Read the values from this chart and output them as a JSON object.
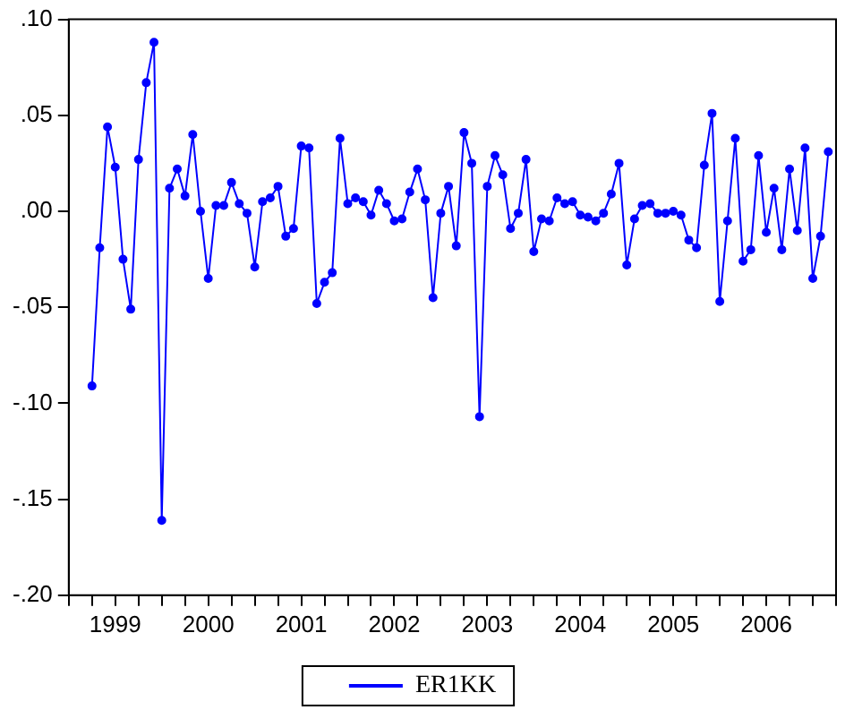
{
  "chart_data": {
    "type": "line",
    "marker": "circle",
    "legend": "bottom",
    "grid": false,
    "xlim": [
      "1999-01",
      "2007-04"
    ],
    "xticks": [
      {
        "value": "1999-01",
        "label": null
      },
      {
        "value": "1999-04",
        "label": null
      },
      {
        "value": "1999-07",
        "label": "1999"
      },
      {
        "value": "1999-10",
        "label": null
      },
      {
        "value": "2000-01",
        "label": null
      },
      {
        "value": "2000-04",
        "label": null
      },
      {
        "value": "2000-07",
        "label": "2000"
      },
      {
        "value": "2000-10",
        "label": null
      },
      {
        "value": "2001-01",
        "label": null
      },
      {
        "value": "2001-04",
        "label": null
      },
      {
        "value": "2001-07",
        "label": "2001"
      },
      {
        "value": "2001-10",
        "label": null
      },
      {
        "value": "2002-01",
        "label": null
      },
      {
        "value": "2002-04",
        "label": null
      },
      {
        "value": "2002-07",
        "label": "2002"
      },
      {
        "value": "2002-10",
        "label": null
      },
      {
        "value": "2003-01",
        "label": null
      },
      {
        "value": "2003-04",
        "label": null
      },
      {
        "value": "2003-07",
        "label": "2003"
      },
      {
        "value": "2003-10",
        "label": null
      },
      {
        "value": "2004-01",
        "label": null
      },
      {
        "value": "2004-04",
        "label": null
      },
      {
        "value": "2004-07",
        "label": "2004"
      },
      {
        "value": "2004-10",
        "label": null
      },
      {
        "value": "2005-01",
        "label": null
      },
      {
        "value": "2005-04",
        "label": null
      },
      {
        "value": "2005-07",
        "label": "2005"
      },
      {
        "value": "2005-10",
        "label": null
      },
      {
        "value": "2006-01",
        "label": null
      },
      {
        "value": "2006-04",
        "label": null
      },
      {
        "value": "2006-07",
        "label": "2006"
      },
      {
        "value": "2006-10",
        "label": null
      },
      {
        "value": "2007-01",
        "label": null
      },
      {
        "value": "2007-04",
        "label": null
      }
    ],
    "ylim": [
      -0.2,
      0.1
    ],
    "yticks": [
      {
        "value": -0.2,
        "label": "-.20"
      },
      {
        "value": -0.15,
        "label": "-.15"
      },
      {
        "value": -0.1,
        "label": "-.10"
      },
      {
        "value": -0.05,
        "label": "-.05"
      },
      {
        "value": 0,
        "label": ".00"
      },
      {
        "value": 0.05,
        "label": ".05"
      },
      {
        "value": 0.1,
        "label": ".10"
      }
    ],
    "x": [
      "1999-04",
      "1999-05",
      "1999-06",
      "1999-07",
      "1999-08",
      "1999-09",
      "1999-10",
      "1999-11",
      "1999-12",
      "2000-01",
      "2000-02",
      "2000-03",
      "2000-04",
      "2000-05",
      "2000-06",
      "2000-07",
      "2000-08",
      "2000-09",
      "2000-10",
      "2000-11",
      "2000-12",
      "2001-01",
      "2001-02",
      "2001-03",
      "2001-04",
      "2001-05",
      "2001-06",
      "2001-07",
      "2001-08",
      "2001-09",
      "2001-10",
      "2001-11",
      "2001-12",
      "2002-01",
      "2002-02",
      "2002-03",
      "2002-04",
      "2002-05",
      "2002-06",
      "2002-07",
      "2002-08",
      "2002-09",
      "2002-10",
      "2002-11",
      "2002-12",
      "2003-01",
      "2003-02",
      "2003-03",
      "2003-04",
      "2003-05",
      "2003-06",
      "2003-07",
      "2003-08",
      "2003-09",
      "2003-10",
      "2003-11",
      "2003-12",
      "2004-01",
      "2004-02",
      "2004-03",
      "2004-04",
      "2004-05",
      "2004-06",
      "2004-07",
      "2004-08",
      "2004-09",
      "2004-10",
      "2004-11",
      "2004-12",
      "2005-01",
      "2005-02",
      "2005-03",
      "2005-04",
      "2005-05",
      "2005-06",
      "2005-07",
      "2005-08",
      "2005-09",
      "2005-10",
      "2005-11",
      "2005-12",
      "2006-01",
      "2006-02",
      "2006-03",
      "2006-04",
      "2006-05",
      "2006-06",
      "2006-07",
      "2006-08",
      "2006-09",
      "2006-10",
      "2006-11",
      "2006-12",
      "2007-01",
      "2007-02",
      "2007-03"
    ],
    "series": [
      {
        "name": "ER1KK",
        "color": "#0000ff",
        "values": [
          -0.091,
          -0.019,
          0.044,
          0.023,
          -0.025,
          -0.051,
          0.027,
          0.067,
          0.088,
          -0.161,
          0.012,
          0.022,
          0.008,
          0.04,
          0.0,
          -0.035,
          0.003,
          0.003,
          0.015,
          0.004,
          -0.001,
          -0.029,
          0.005,
          0.007,
          0.013,
          -0.013,
          -0.009,
          0.034,
          0.033,
          -0.048,
          -0.037,
          -0.032,
          0.038,
          0.004,
          0.007,
          0.005,
          -0.002,
          0.011,
          0.004,
          -0.005,
          -0.004,
          0.01,
          0.022,
          0.006,
          -0.045,
          -0.001,
          0.013,
          -0.018,
          0.041,
          0.025,
          -0.107,
          0.013,
          0.029,
          0.019,
          -0.009,
          -0.001,
          0.027,
          -0.021,
          -0.004,
          -0.005,
          0.007,
          0.004,
          0.005,
          -0.002,
          -0.003,
          -0.005,
          -0.001,
          0.009,
          0.025,
          -0.028,
          -0.004,
          0.003,
          0.004,
          -0.001,
          -0.001,
          0.0,
          -0.002,
          -0.015,
          -0.019,
          0.024,
          0.051,
          -0.047,
          -0.005,
          0.038,
          -0.026,
          -0.02,
          0.029,
          -0.011,
          0.012,
          -0.02,
          0.022,
          -0.01,
          0.033,
          -0.035,
          -0.013,
          0.031
        ]
      }
    ]
  }
}
